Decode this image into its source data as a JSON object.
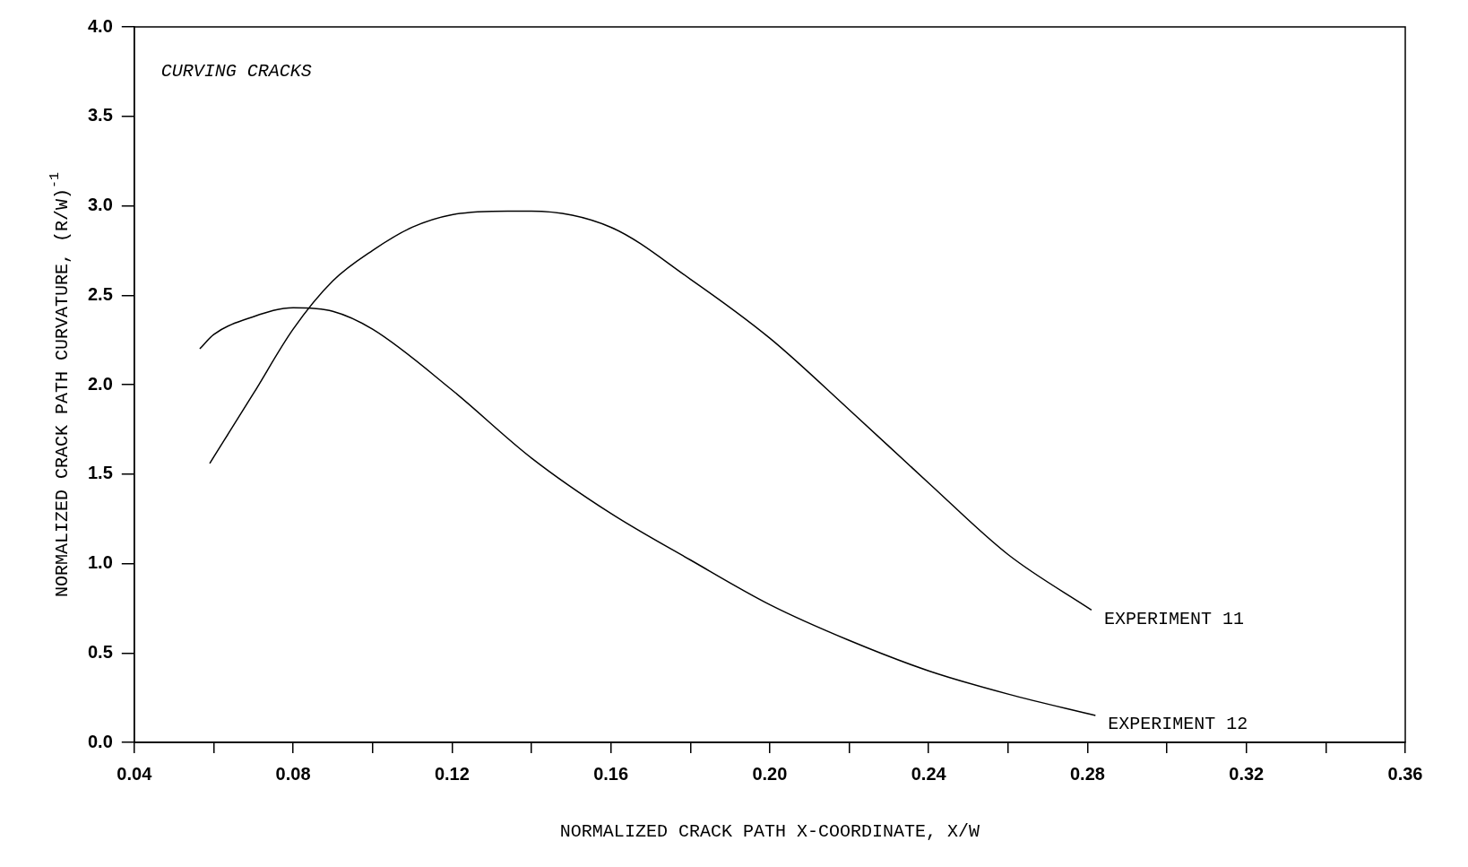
{
  "chart_data": {
    "type": "line",
    "xlabel": "NORMALIZED CRACK PATH X-COORDINATE, X/W",
    "ylabel": "NORMALIZED CRACK PATH CURVATURE, (R/W)$^{-1}$",
    "annotations": [
      "CURVING CRACKS"
    ],
    "xlim": [
      0.04,
      0.36
    ],
    "ylim": [
      0,
      4
    ],
    "xticks": [
      0.04,
      {
        "value": 0.06,
        "label": null
      },
      0.08,
      {
        "value": 0.1,
        "label": null
      },
      0.12,
      {
        "value": 0.14,
        "label": null
      },
      0.16,
      {
        "value": 0.18,
        "label": null
      },
      {
        "value": 0.2,
        "label": "0.20"
      },
      {
        "value": 0.22,
        "label": null
      },
      0.24,
      {
        "value": 0.26,
        "label": null
      },
      0.28,
      {
        "value": 0.3,
        "label": null
      },
      0.32,
      {
        "value": 0.34,
        "label": null
      },
      0.36
    ],
    "yticks": [
      {
        "value": 0,
        "label": "0.0"
      },
      {
        "value": 0.5,
        "label": "0.5"
      },
      {
        "value": 1,
        "label": "1.0"
      },
      {
        "value": 1.5,
        "label": "1.5"
      },
      {
        "value": 2,
        "label": "2.0"
      },
      {
        "value": 2.5,
        "label": "2.5"
      },
      {
        "value": 3,
        "label": "3.0"
      },
      {
        "value": 3.5,
        "label": "3.5"
      },
      {
        "value": 4,
        "label": "4.0"
      }
    ],
    "grid": false,
    "legend": false,
    "marker": "none",
    "line_style": "solid",
    "series": [
      {
        "name": "EXPERIMENT 11",
        "color": "#000000",
        "x": [
          0.059,
          0.07,
          0.08,
          0.09,
          0.1,
          0.11,
          0.12,
          0.134,
          0.14,
          0.16,
          0.18,
          0.2,
          0.22,
          0.24,
          0.26,
          0.281
        ],
        "values": [
          1.56,
          1.95,
          2.31,
          2.58,
          2.75,
          2.88,
          2.95,
          2.97,
          2.97,
          2.88,
          2.59,
          2.26,
          1.86,
          1.45,
          1.05,
          0.74
        ]
      },
      {
        "name": "EXPERIMENT 12",
        "color": "#000000",
        "x": [
          0.0565,
          0.06,
          0.07,
          0.08,
          0.09,
          0.1,
          0.12,
          0.14,
          0.16,
          0.18,
          0.2,
          0.22,
          0.24,
          0.26,
          0.282
        ],
        "values": [
          2.2,
          2.28,
          2.38,
          2.43,
          2.41,
          2.31,
          1.97,
          1.59,
          1.28,
          1.02,
          0.77,
          0.57,
          0.4,
          0.27,
          0.15
        ]
      }
    ]
  }
}
